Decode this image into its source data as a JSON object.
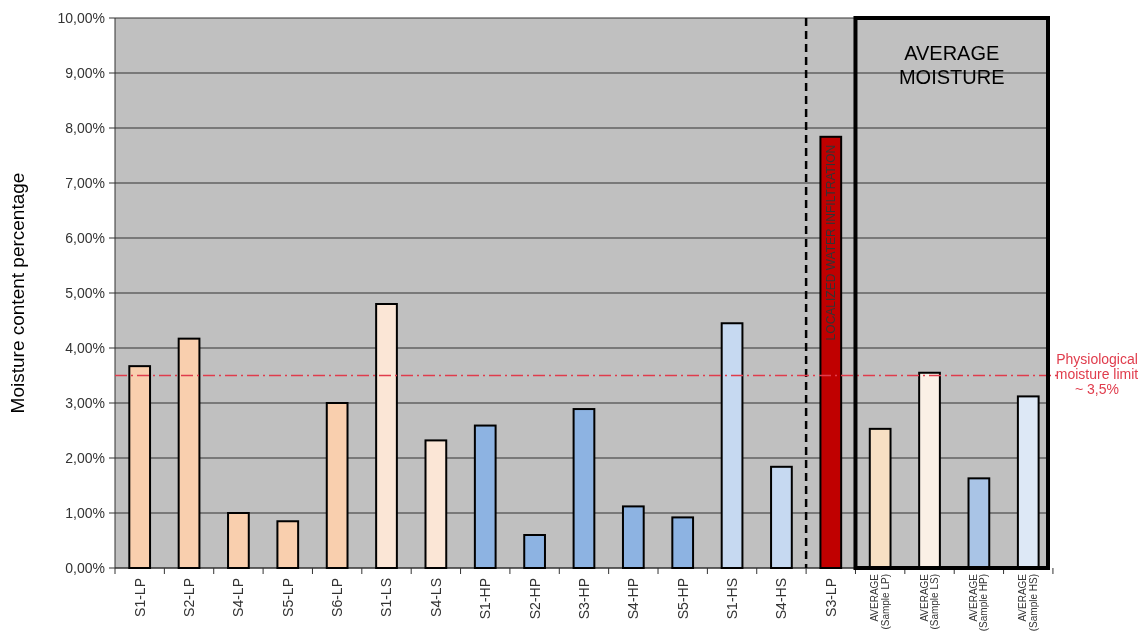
{
  "chart_data": {
    "type": "bar",
    "ylabel": "Moisture content percentage",
    "categories": [
      "S1-LP",
      "S2-LP",
      "S4-LP",
      "S5-LP",
      "S6-LP",
      "S1-LS",
      "S4-LS",
      "S1-HP",
      "S2-HP",
      "S3-HP",
      "S4-HP",
      "S5-HP",
      "S1-HS",
      "S4-HS",
      "S3-LP",
      "AVERAGE (Sample LP)",
      "AVERAGE (Sample LS)",
      "AVERAGE (Sample HP)",
      "AVERAGE (Sample HS)"
    ],
    "values": [
      3.67,
      4.17,
      1.0,
      0.85,
      3.0,
      4.8,
      2.32,
      2.59,
      0.6,
      2.89,
      1.12,
      0.92,
      4.45,
      1.84,
      7.84,
      2.53,
      3.55,
      1.63,
      3.12
    ],
    "colors": [
      "#f9cfae",
      "#f9cfae",
      "#f9cfae",
      "#f9cfae",
      "#f9cfae",
      "#fbe6d6",
      "#fbe6d6",
      "#8db3e2",
      "#8db3e2",
      "#8db3e2",
      "#8db3e2",
      "#8db3e2",
      "#c6d9f1",
      "#c6d9f1",
      "#c00000",
      "#f7e0c4",
      "#fbf0e6",
      "#a9c4e6",
      "#dde8f6"
    ],
    "ylim": [
      0,
      10
    ],
    "yticks": [
      {
        "value": 0,
        "label": "0,00%"
      },
      {
        "value": 1,
        "label": "1,00%"
      },
      {
        "value": 2,
        "label": "2,00%"
      },
      {
        "value": 3,
        "label": "3,00%"
      },
      {
        "value": 4,
        "label": "4,00%"
      },
      {
        "value": 5,
        "label": "5,00%"
      },
      {
        "value": 6,
        "label": "6,00%"
      },
      {
        "value": 7,
        "label": "7,00%"
      },
      {
        "value": 8,
        "label": "8,00%"
      },
      {
        "value": 9,
        "label": "9,00%"
      },
      {
        "value": 10,
        "label": "10,00%"
      }
    ],
    "grid": "y",
    "ref_lines": [
      {
        "axis": "y",
        "value": 3.5,
        "label": "Physiological moisture limit ~ 3,5%",
        "color": "#e03c4c",
        "line_style": "dashed"
      }
    ],
    "annotations": [
      {
        "text": "LOCALIZED WATER INFILTRATION",
        "x": "S3-LP",
        "y": 7.84
      },
      "AVERAGE MOISTURE"
    ]
  }
}
